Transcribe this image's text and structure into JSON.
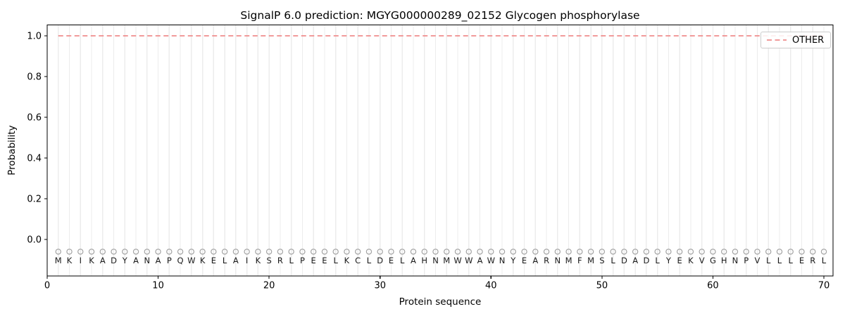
{
  "chart_data": {
    "type": "line",
    "title": "SignalP 6.0 prediction: MGYG000000289_02152 Glycogen phosphorylase",
    "xlabel": "Protein sequence",
    "ylabel": "Probability",
    "xlim": [
      0,
      70.8
    ],
    "ylim": [
      -0.18,
      1.05
    ],
    "x_ticks": [
      0,
      10,
      20,
      30,
      40,
      50,
      60,
      70
    ],
    "x_tick_labels": [
      "0",
      "10",
      "20",
      "30",
      "40",
      "50",
      "60",
      "70"
    ],
    "y_ticks": [
      0.0,
      0.2,
      0.4,
      0.6,
      0.8,
      1.0
    ],
    "y_tick_labels": [
      "0.0",
      "0.2",
      "0.4",
      "0.6",
      "0.8",
      "1.0"
    ],
    "grid": {
      "vertical_line_per_residue": true,
      "color": "#ececec"
    },
    "legend": {
      "position": "upper right",
      "entries": [
        {
          "label": "OTHER",
          "color": "#ef8c8c",
          "linestyle": "dashed"
        }
      ]
    },
    "series": [
      {
        "name": "OTHER",
        "color": "#ef8c8c",
        "linestyle": "dashed",
        "x_start": 1,
        "x_end": 70,
        "y_constant": 1.0
      }
    ],
    "sequence": {
      "residues": "MKIKADYANAPQWKELAIKSRLPEELKCLDELAHNMWWAWNYEARNMFMSLDADLYEKVGHNPVLLLERL",
      "marker": {
        "shape": "open-circle",
        "y": -0.06,
        "color": "#a3a3a3"
      },
      "letter_y": -0.103,
      "letter_color": "#1a1a1a"
    },
    "colors": {
      "spine": "#000000",
      "tick_label": "#000000",
      "background": "#ffffff"
    }
  }
}
